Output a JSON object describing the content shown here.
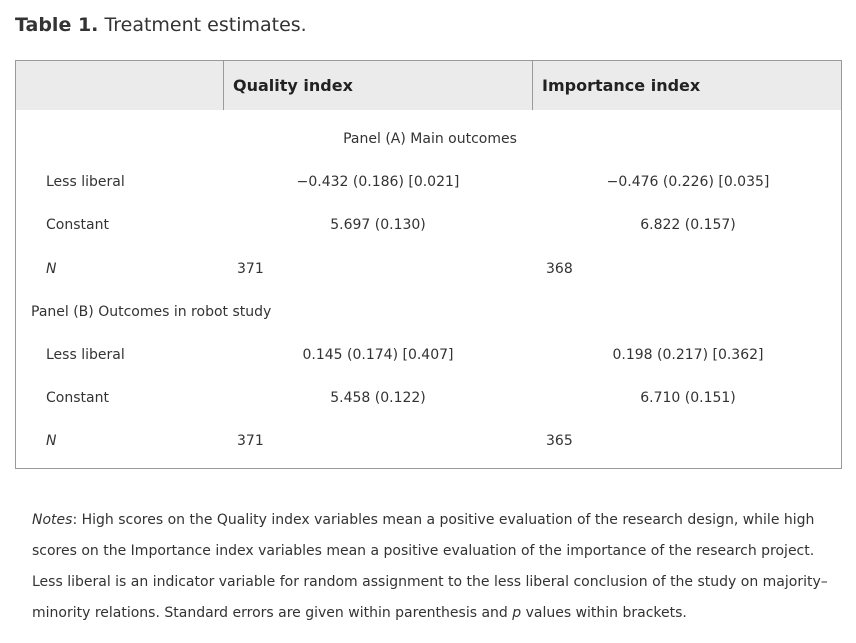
{
  "caption": {
    "label": "Table 1.",
    "title": "Treatment estimates."
  },
  "header": {
    "col1": "Quality index",
    "col2": "Importance index"
  },
  "panel_a": {
    "title": "Panel (A) Main outcomes",
    "less_liberal": {
      "label": "Less liberal",
      "quality": "−0.432 (0.186) [0.021]",
      "importance": "−0.476 (0.226) [0.035]"
    },
    "constant": {
      "label": "Constant",
      "quality": "5.697 (0.130)",
      "importance": "6.822 (0.157)"
    },
    "n": {
      "label": "N",
      "quality": "371",
      "importance": "368"
    }
  },
  "panel_b": {
    "title": "Panel (B) Outcomes in robot study",
    "less_liberal": {
      "label": "Less liberal",
      "quality": "0.145 (0.174) [0.407]",
      "importance": "0.198 (0.217) [0.362]"
    },
    "constant": {
      "label": "Constant",
      "quality": "5.458 (0.122)",
      "importance": "6.710 (0.151)"
    },
    "n": {
      "label": "N",
      "quality": "371",
      "importance": "365"
    }
  },
  "notes": {
    "label": "Notes",
    "text1": ": High scores on the Quality index variables mean a positive evaluation of the research design, while high scores on the Importance index variables mean a positive evaluation of the importance of the research project. Less liberal is an indicator variable for random assignment to the less liberal conclusion of the study on majority–minority relations. Standard errors are given within parenthesis and ",
    "p": "p",
    "text2": " values within brackets."
  }
}
